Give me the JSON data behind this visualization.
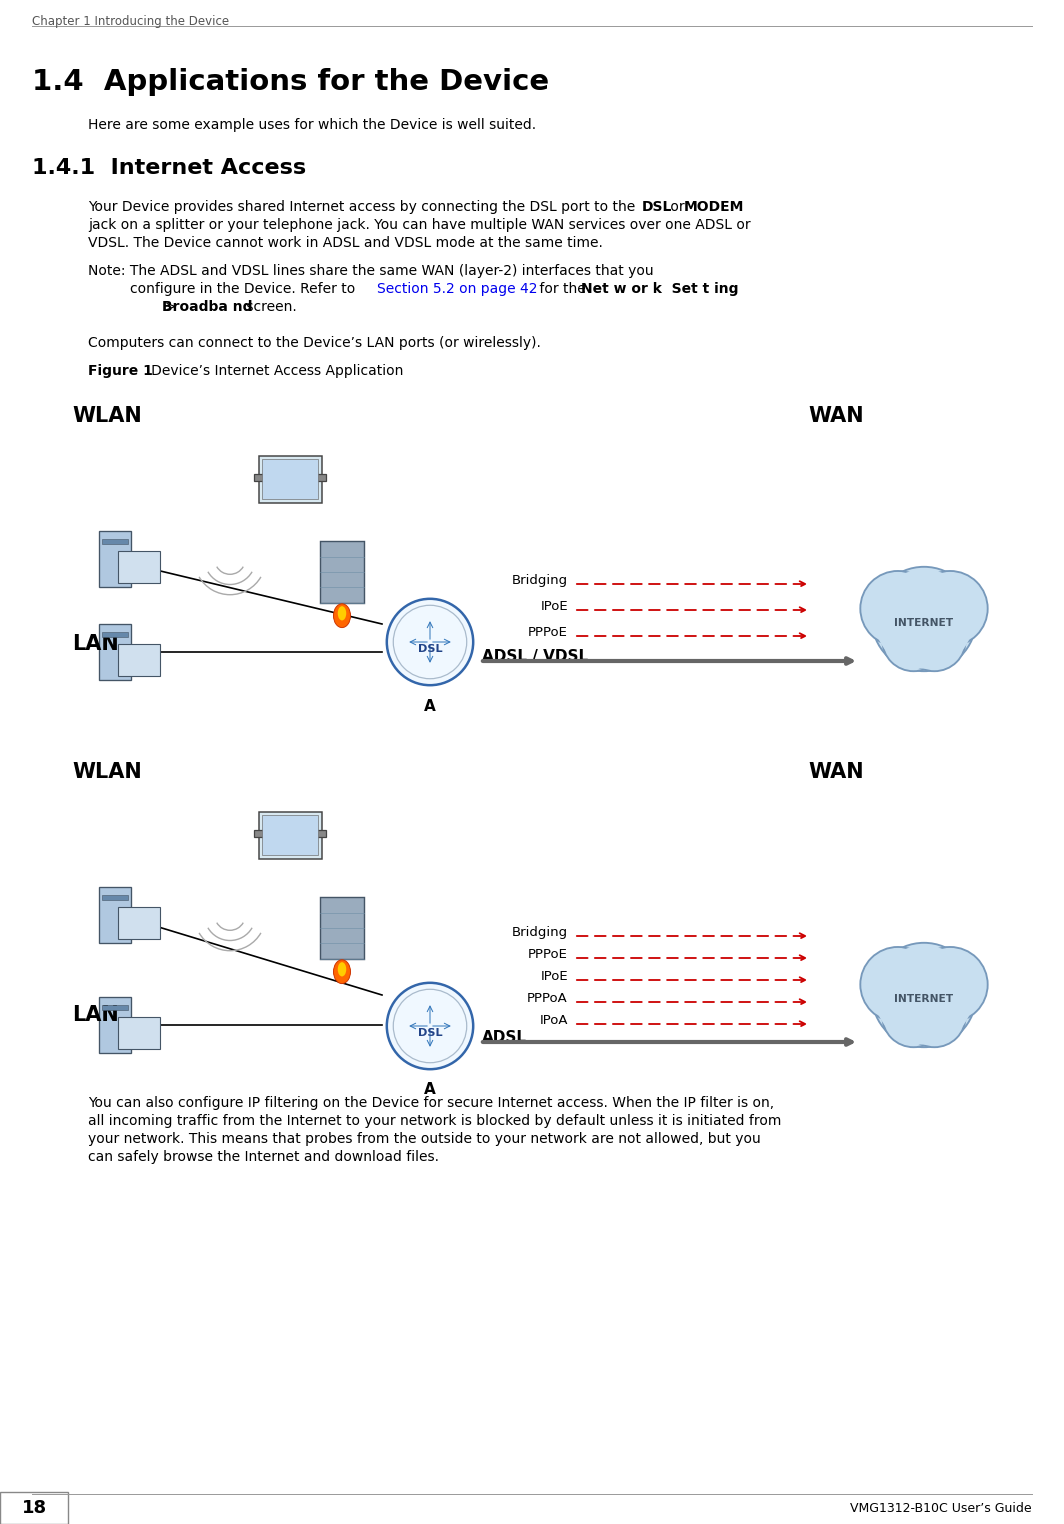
{
  "bg_color": "#ffffff",
  "header_text": "Chapter 1 Introducing the Device",
  "footer_page": "18",
  "footer_right": "VMG1312-B10C User’s Guide",
  "title": "1.4  Applications for the Device",
  "intro": "Here are some example uses for which the Device is well suited.",
  "section_title": "1.4.1  Internet Access",
  "p1_line1_a": "Your Device provides shared Internet access by connecting the DSL port to the ",
  "p1_line1_b": "DSL",
  "p1_line1_c": " or ",
  "p1_line1_d": "MODEM",
  "p1_line2": "jack on a splitter or your telephone jack. You can have multiple WAN services over one ADSL or",
  "p1_line3": "VDSL. The Device cannot work in ADSL and VDSL mode at the same time.",
  "note_l1": "Note: The ADSL and VDSL lines share the same WAN (layer-2) interfaces that you",
  "note_l2a": "configure in the Device. Refer to ",
  "note_l2b": "Section 5.2 on page 42",
  "note_l2c": " for the ",
  "note_l2d": "Net w or k  Set t ing",
  "note_l3a": "        >  ",
  "note_l3b": "Broadba nd",
  "note_l3c": " screen.",
  "computers_line": "Computers can connect to the Device’s LAN ports (or wirelessly).",
  "figure_label": "Figure 1",
  "figure_caption": "   Device’s Internet Access Application",
  "d1_wlan": "WLAN",
  "d1_wan": "WAN",
  "d1_lan": "LAN",
  "d1_adsl_vdsl": "ADSL / VDSL",
  "d1_proto": [
    "Bridging",
    "IPoE",
    "PPPoE"
  ],
  "d1_bottom": "A",
  "d2_wlan": "WLAN",
  "d2_wan": "WAN",
  "d2_lan": "LAN",
  "d2_adsl": "ADSL",
  "d2_proto": [
    "Bridging",
    "PPPoE",
    "IPoE",
    "PPPoA",
    "IPoA"
  ],
  "d2_bottom": "A",
  "closing_para1": "You can also configure IP filtering on the Device for secure Internet access. When the IP filter is on,",
  "closing_para2": "all incoming traffic from the Internet to your network is blocked by default unless it is initiated from",
  "closing_para3": "your network. This means that probes from the outside to your network are not allowed, but you",
  "closing_para4": "can safely browse the Internet and download files.",
  "link_color": "#0000EE",
  "arrow_color": "#CC0000",
  "text_color": "#000000",
  "header_color": "#555555"
}
